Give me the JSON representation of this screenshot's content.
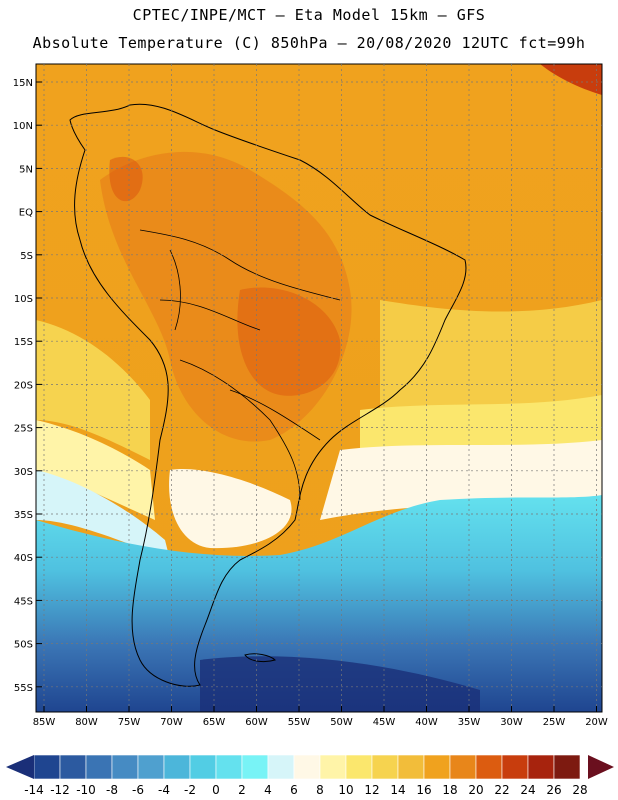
{
  "header": {
    "line1": "CPTEC/INPE/MCT –  Eta Model 15km – GFS",
    "line2": "Absolute Temperature (C) 850hPa – 20/08/2020 12UTC fct=99h"
  },
  "map": {
    "lat_labels": [
      "15N",
      "10N",
      "5N",
      "EQ",
      "5S",
      "10S",
      "15S",
      "20S",
      "25S",
      "30S",
      "35S",
      "40S",
      "45S",
      "50S",
      "55S"
    ],
    "lon_labels": [
      "85W",
      "80W",
      "75W",
      "70W",
      "65W",
      "60W",
      "55W",
      "50W",
      "45W",
      "40W",
      "35W",
      "30W",
      "25W",
      "20W"
    ],
    "colors": {
      "background_warm": "#f0a21e",
      "ocean_cool": "#3f9fd0"
    }
  },
  "colorbar": {
    "ticks": [
      "-14",
      "-12",
      "-10",
      "-8",
      "-6",
      "-4",
      "-2",
      "0",
      "2",
      "4",
      "6",
      "8",
      "10",
      "12",
      "14",
      "16",
      "18",
      "20",
      "22",
      "24",
      "26",
      "28"
    ],
    "colors": [
      "#1f4590",
      "#2c5aa0",
      "#3a74b4",
      "#468bc3",
      "#4fa0cf",
      "#4cb6da",
      "#52cde4",
      "#64e1ee",
      "#78f3f6",
      "#d6f5f9",
      "#fff8e6",
      "#fff4a8",
      "#fbe76d",
      "#f6d34f",
      "#f2bd3a",
      "#f0a21e",
      "#e8861a",
      "#dc5c10",
      "#c83d0d",
      "#a7230d",
      "#7d1a10"
    ],
    "end_low": "#1a2f78",
    "end_high": "#6a0f1e"
  }
}
